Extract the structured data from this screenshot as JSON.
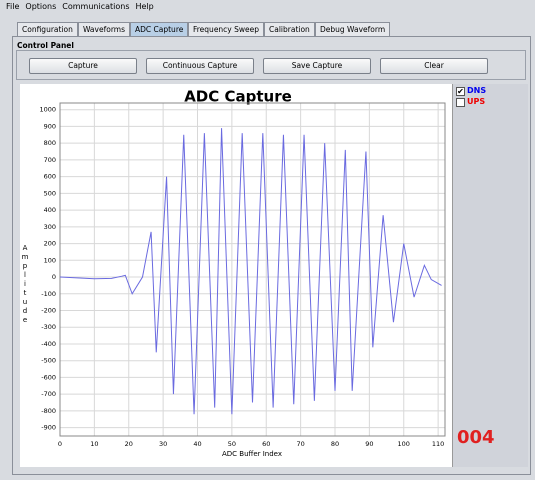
{
  "menu": [
    "File",
    "Options",
    "Communications",
    "Help"
  ],
  "tabs": [
    "Configuration",
    "Waveforms",
    "ADC Capture",
    "Frequency Sweep",
    "Calibration",
    "Debug Waveform"
  ],
  "active_tab": 2,
  "panel": {
    "title": "Control Panel",
    "buttons": [
      "Capture",
      "Continuous Capture",
      "Save Capture",
      "Clear"
    ]
  },
  "channels": [
    {
      "label": "DNS",
      "color": "#0000ee",
      "checked": true
    },
    {
      "label": "UPS",
      "color": "#ee0000",
      "checked": false
    }
  ],
  "counter": "004",
  "chart_data": {
    "type": "line",
    "title": "ADC Capture",
    "x_label": "ADC Buffer Index",
    "y_label": "Amplitude",
    "x": [
      0,
      5,
      10,
      15,
      18,
      19,
      21,
      24,
      26.5,
      28,
      31,
      33,
      36,
      39,
      42,
      45,
      47,
      50,
      53,
      56,
      59,
      62,
      65,
      68,
      71,
      74,
      77,
      80,
      83,
      85,
      89,
      91,
      94,
      97,
      100,
      103,
      106,
      108,
      111
    ],
    "series": [
      {
        "color": "#6a6ae0",
        "values": [
          0,
          -5,
          -10,
          -8,
          5,
          10,
          -100,
          0,
          270,
          -450,
          600,
          -700,
          850,
          -820,
          860,
          -780,
          890,
          -820,
          860,
          -750,
          860,
          -780,
          850,
          -760,
          850,
          -740,
          800,
          -680,
          760,
          -680,
          750,
          -420,
          370,
          -270,
          200,
          -120,
          70,
          -15,
          -50
        ]
      }
    ],
    "xlim": [
      0,
      112
    ],
    "ylim": [
      -950,
      1040
    ],
    "xticks": [
      0,
      10,
      20,
      30,
      40,
      50,
      60,
      70,
      80,
      90,
      100,
      110
    ],
    "yticks": [
      -900,
      -800,
      -700,
      -600,
      -500,
      -400,
      -300,
      -200,
      -100,
      0,
      100,
      200,
      300,
      400,
      500,
      600,
      700,
      800,
      900,
      1000
    ],
    "grid": true
  }
}
